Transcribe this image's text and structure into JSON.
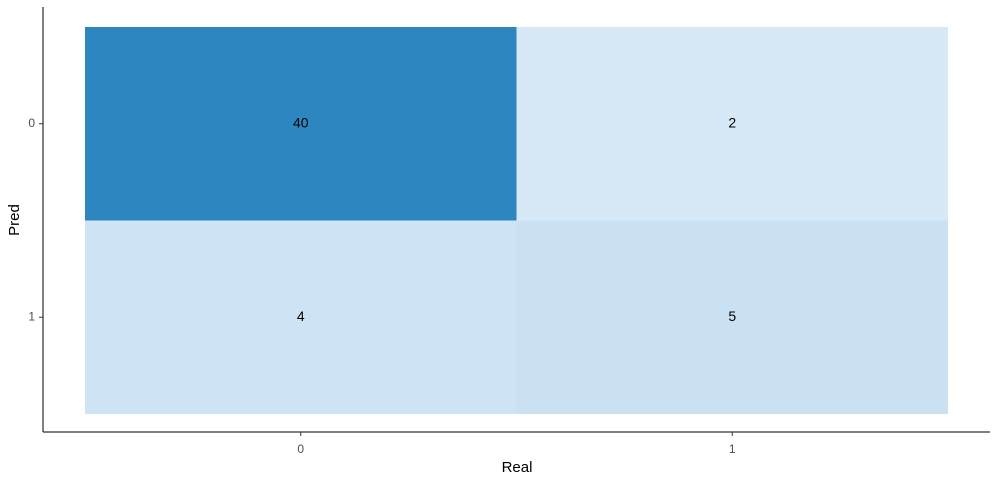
{
  "chart_data": {
    "type": "heatmap",
    "x_label": "Real",
    "y_label": "Pred",
    "x_categories": [
      "0",
      "1"
    ],
    "y_categories": [
      "0",
      "1"
    ],
    "values": [
      [
        40,
        2
      ],
      [
        4,
        5
      ]
    ],
    "colors": {
      "low": "#d7e9f7",
      "high": "#2e86c1"
    }
  }
}
